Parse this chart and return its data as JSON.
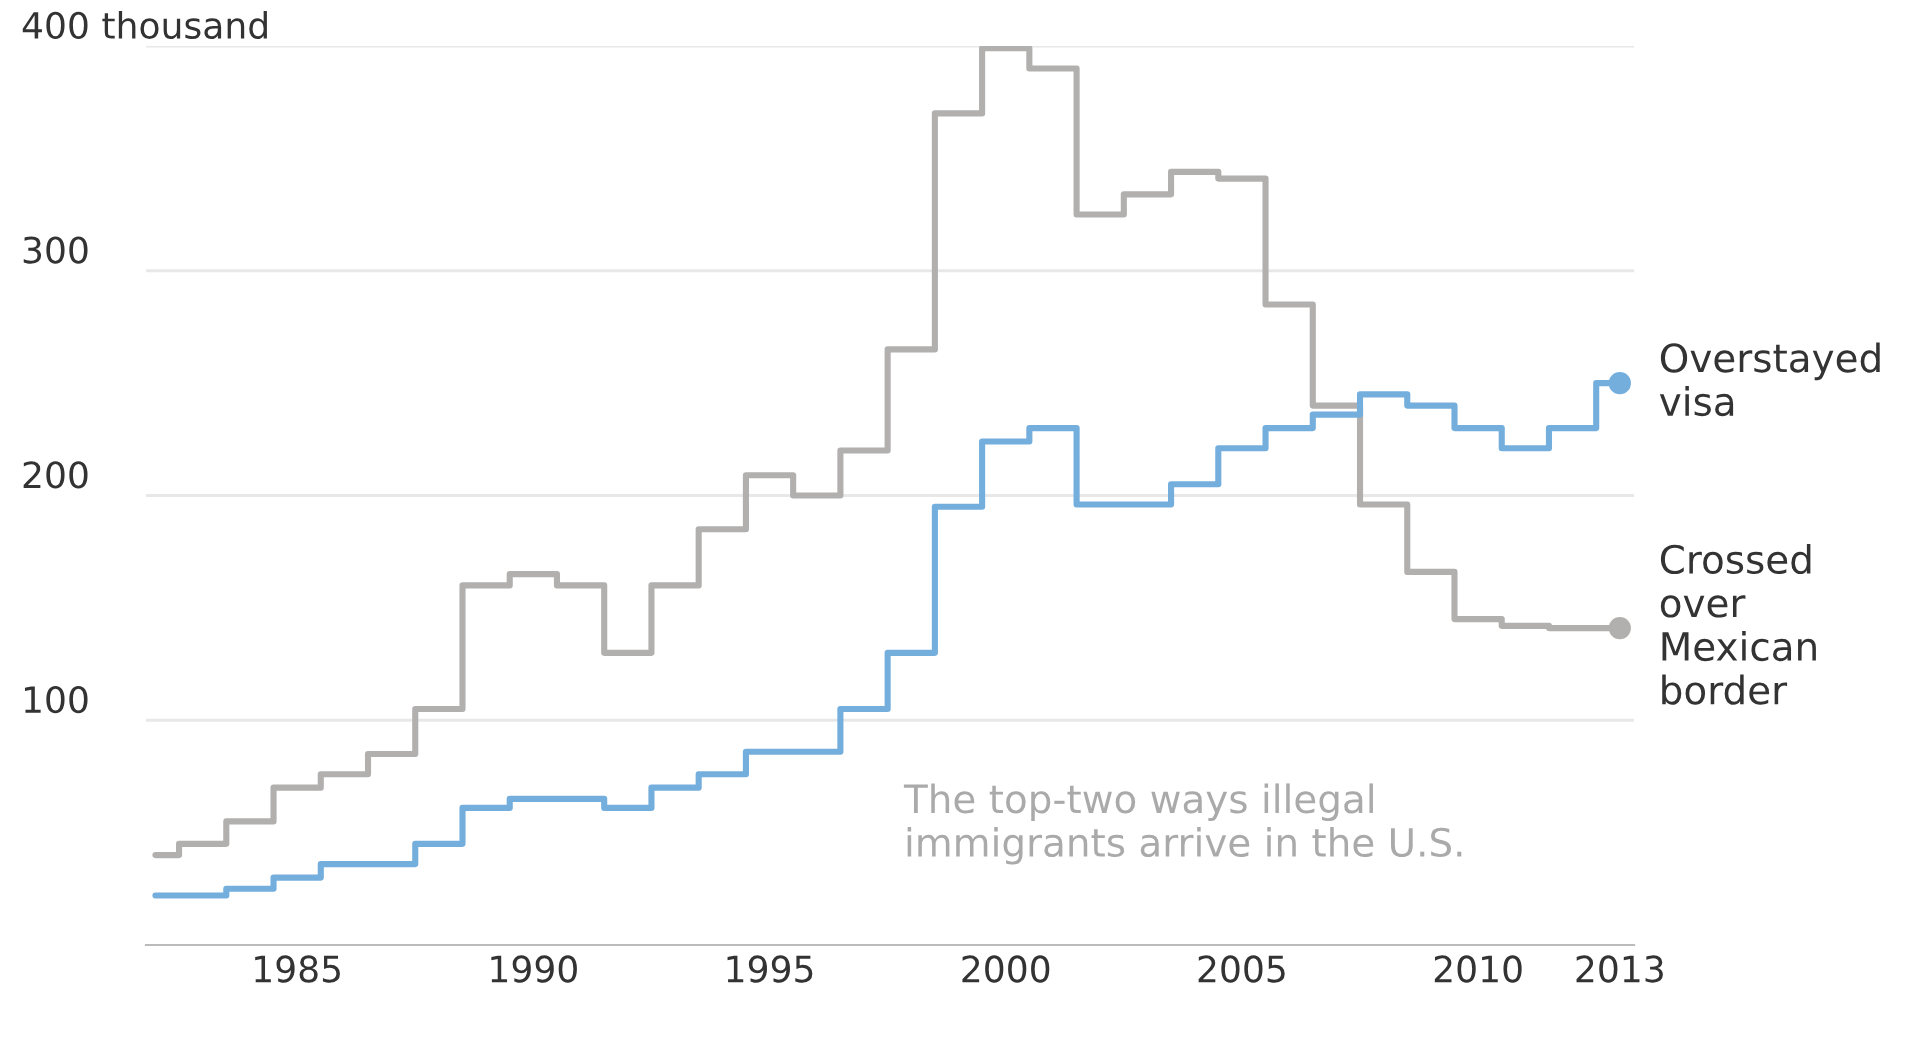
{
  "chart_data": {
    "type": "step",
    "x": [
      1982,
      1983,
      1984,
      1985,
      1986,
      1987,
      1988,
      1989,
      1990,
      1991,
      1992,
      1993,
      1994,
      1995,
      1996,
      1997,
      1998,
      1999,
      2000,
      2001,
      2002,
      2003,
      2004,
      2005,
      2006,
      2007,
      2008,
      2009,
      2010,
      2011,
      2012,
      2013
    ],
    "series": [
      {
        "name": "Crossed over Mexican border",
        "color": "#b2afaf",
        "values": [
          40,
          45,
          55,
          70,
          76,
          85,
          105,
          160,
          165,
          160,
          130,
          160,
          185,
          209,
          200,
          220,
          265,
          370,
          399,
          390,
          325,
          334,
          344,
          341,
          285,
          240,
          196,
          166,
          145,
          142,
          141,
          141
        ]
      },
      {
        "name": "Overstayed visa",
        "color": "#74aedd",
        "values": [
          22,
          22,
          25,
          30,
          36,
          36,
          45,
          61,
          65,
          65,
          61,
          70,
          76,
          86,
          86,
          105,
          130,
          195,
          224,
          230,
          196,
          196,
          205,
          221,
          230,
          236,
          245,
          240,
          230,
          221,
          230,
          250
        ]
      }
    ],
    "xlim": [
      1981.8,
      2013.3
    ],
    "xticks": [
      1985,
      1990,
      1995,
      2000,
      2005,
      2010,
      2013
    ],
    "ylim": [
      0,
      400
    ],
    "yticks": [
      100,
      200,
      300,
      {
        "value": 400,
        "label": "400 thousand"
      }
    ],
    "grid": "y",
    "annotations": [
      "The top-two ways illegal\nimmigrants arrive in the U.S."
    ]
  }
}
